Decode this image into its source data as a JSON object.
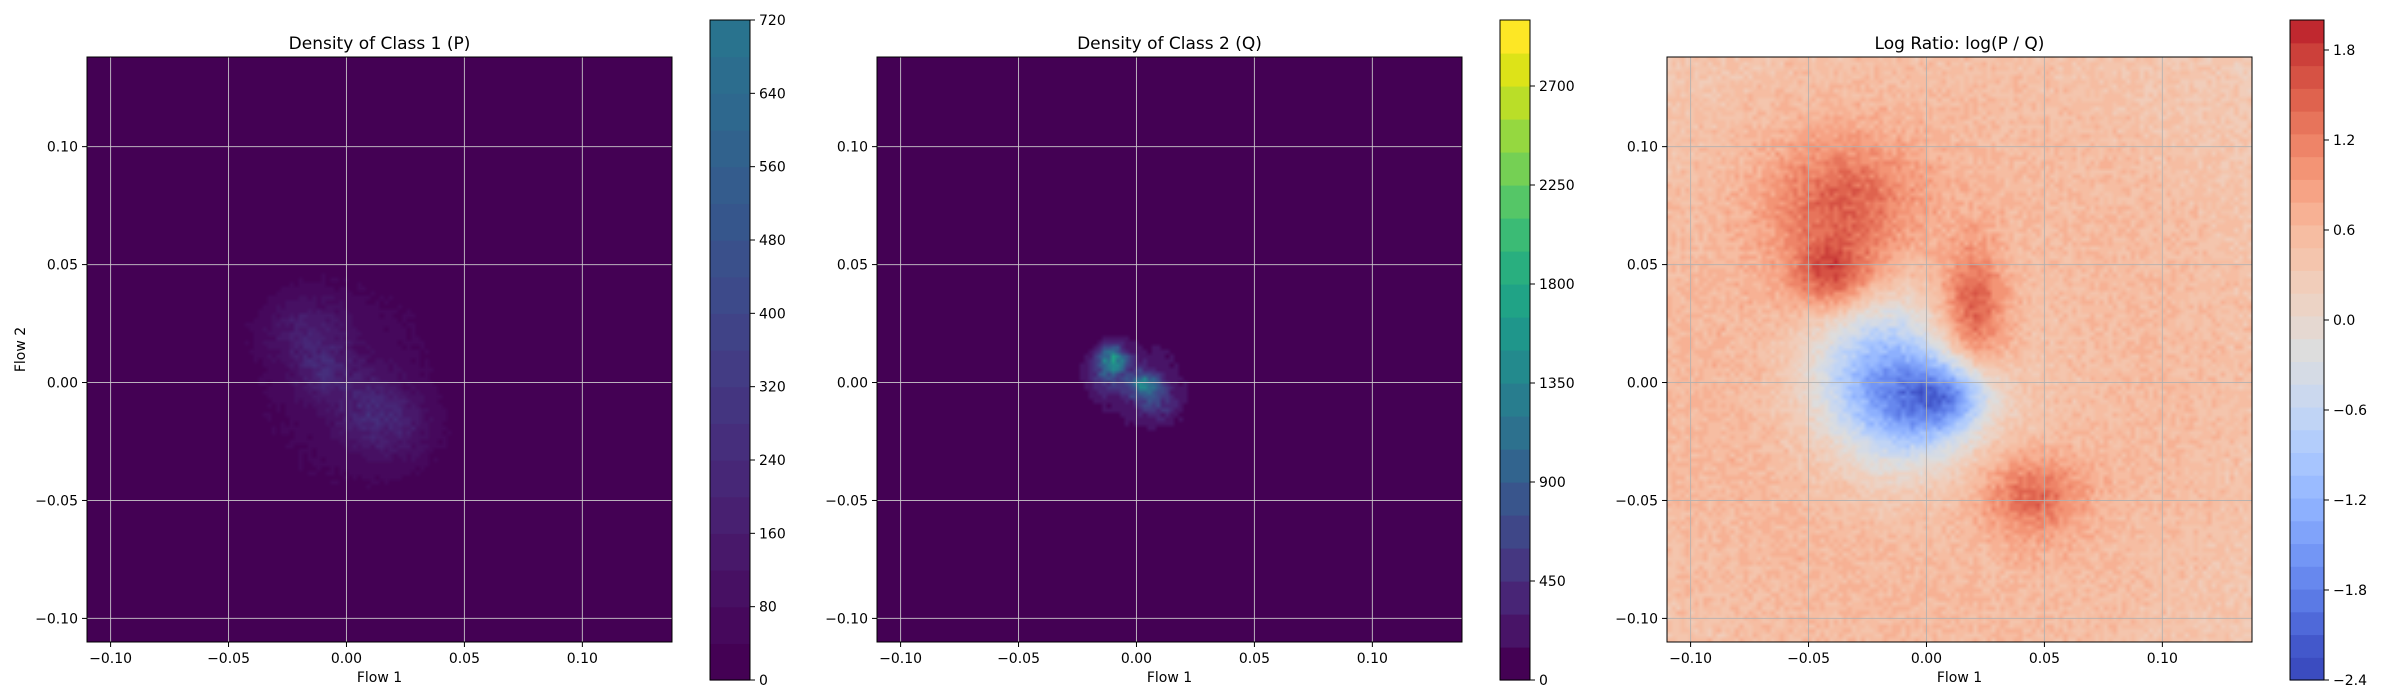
{
  "chart_data": [
    {
      "type": "heatmap",
      "title": "Density of Class 1 (P)",
      "xlabel": "Flow 1",
      "ylabel": "Flow 2",
      "xlim": [
        -0.11,
        0.138
      ],
      "ylim": [
        -0.11,
        0.138
      ],
      "xticks": [
        -0.1,
        -0.05,
        0.0,
        0.05,
        0.1
      ],
      "xtick_labels": [
        "−0.10",
        "−0.05",
        "0.00",
        "0.05",
        "0.10"
      ],
      "yticks": [
        -0.1,
        -0.05,
        0.0,
        0.05,
        0.1
      ],
      "ytick_labels": [
        "−0.10",
        "−0.05",
        "0.00",
        "0.05",
        "0.10"
      ],
      "grid": true,
      "colormap": "viridis",
      "background_color": "#440154",
      "colorbar": {
        "min": 0,
        "max": 720,
        "ticks": [
          0,
          80,
          160,
          240,
          320,
          400,
          480,
          560,
          640,
          720
        ],
        "tick_labels": [
          "0",
          "80",
          "160",
          "240",
          "320",
          "400",
          "480",
          "560",
          "640",
          "720"
        ],
        "levels": 18,
        "colors": [
          "#440154",
          "#46085c",
          "#471063",
          "#48186a",
          "#482071",
          "#472777",
          "#462e7c",
          "#443580",
          "#433c84",
          "#404387",
          "#3d4a8a",
          "#3a508b",
          "#36568c",
          "#345c8d",
          "#31628d",
          "#2e688e",
          "#2c6d8e",
          "#29738e"
        ]
      },
      "density_blobs": [
        {
          "x": 0.0,
          "y": 0.0,
          "sx": 0.03,
          "sy": 0.035,
          "value": 70
        },
        {
          "x": -0.018,
          "y": 0.022,
          "sx": 0.012,
          "sy": 0.01,
          "value": 110
        },
        {
          "x": 0.01,
          "y": -0.01,
          "sx": 0.01,
          "sy": 0.01,
          "value": 120
        },
        {
          "x": -0.01,
          "y": 0.005,
          "sx": 0.008,
          "sy": 0.008,
          "value": 130
        },
        {
          "x": 0.02,
          "y": -0.02,
          "sx": 0.012,
          "sy": 0.01,
          "value": 100
        }
      ]
    },
    {
      "type": "heatmap",
      "title": "Density of Class 2 (Q)",
      "xlabel": "Flow 1",
      "ylabel": "",
      "xlim": [
        -0.11,
        0.138
      ],
      "ylim": [
        -0.11,
        0.138
      ],
      "xticks": [
        -0.1,
        -0.05,
        0.0,
        0.05,
        0.1
      ],
      "xtick_labels": [
        "−0.10",
        "−0.05",
        "0.00",
        "0.05",
        "0.10"
      ],
      "yticks": [
        -0.1,
        -0.05,
        0.0,
        0.05,
        0.1
      ],
      "ytick_labels": [
        "−0.10",
        "−0.05",
        "0.00",
        "0.05",
        "0.10"
      ],
      "grid": true,
      "colormap": "viridis",
      "background_color": "#440154",
      "colorbar": {
        "min": 0,
        "max": 3000,
        "ticks": [
          0,
          450,
          900,
          1350,
          1800,
          2250,
          2700
        ],
        "tick_labels": [
          "0",
          "450",
          "900",
          "1350",
          "1800",
          "2250",
          "2700"
        ],
        "levels": 20,
        "colors": [
          "#440154",
          "#481467",
          "#482576",
          "#453781",
          "#3f4788",
          "#39558c",
          "#32648e",
          "#2d718e",
          "#287d8e",
          "#238a8d",
          "#1f968b",
          "#20a386",
          "#29af7f",
          "#3bbb75",
          "#55c667",
          "#75d054",
          "#95d840",
          "#bade28",
          "#dde318",
          "#fde725"
        ]
      },
      "density_blobs": [
        {
          "x": 0.0,
          "y": 0.0,
          "sx": 0.016,
          "sy": 0.015,
          "value": 260
        },
        {
          "x": -0.01,
          "y": 0.01,
          "sx": 0.004,
          "sy": 0.004,
          "value": 1100
        },
        {
          "x": 0.003,
          "y": -0.001,
          "sx": 0.004,
          "sy": 0.004,
          "value": 1000
        },
        {
          "x": -0.012,
          "y": 0.004,
          "sx": 0.006,
          "sy": 0.006,
          "value": 420
        },
        {
          "x": 0.01,
          "y": -0.008,
          "sx": 0.006,
          "sy": 0.006,
          "value": 380
        }
      ]
    },
    {
      "type": "heatmap",
      "title": "Log Ratio: log(P / Q)",
      "xlabel": "Flow 1",
      "ylabel": "",
      "xlim": [
        -0.11,
        0.138
      ],
      "ylim": [
        -0.11,
        0.138
      ],
      "xticks": [
        -0.1,
        -0.05,
        0.0,
        0.05,
        0.1
      ],
      "xtick_labels": [
        "−0.10",
        "−0.05",
        "0.00",
        "0.05",
        "0.10"
      ],
      "yticks": [
        -0.1,
        -0.05,
        0.0,
        0.05,
        0.1
      ],
      "ytick_labels": [
        "−0.10",
        "−0.05",
        "0.00",
        "0.05",
        "0.10"
      ],
      "grid": true,
      "colormap": "coolwarm",
      "background_value": 0.7,
      "colorbar": {
        "min": -2.4,
        "max": 2.0,
        "ticks": [
          -2.4,
          -1.8,
          -1.2,
          -0.6,
          0.0,
          0.6,
          1.2,
          1.8
        ],
        "tick_labels": [
          "−2.4",
          "−1.8",
          "−1.2",
          "−0.6",
          "0.0",
          "0.6",
          "1.2",
          "1.8"
        ],
        "levels": 22,
        "colors": [
          "#3b4cc0",
          "#4358cb",
          "#4f69d9",
          "#5b7ae5",
          "#6788ee",
          "#7396f5",
          "#80a3fa",
          "#8db0fe",
          "#9abbff",
          "#a7c5fe",
          "#b3cdfb",
          "#c0d4f5",
          "#cbd8ee",
          "#d5dbe5",
          "#dddddd",
          "#e5d8d1",
          "#ecd3c5",
          "#f1cdba",
          "#f4c5ad",
          "#f6bda2",
          "#f7b194",
          "#f6a385"
        ],
        "upper_colors": [
          "#f39475",
          "#ee8468",
          "#e7745b",
          "#df634e",
          "#d65244",
          "#cc403a",
          "#c0282f"
        ]
      },
      "ratio_blobs": [
        {
          "x": -0.02,
          "y": 0.002,
          "sx": 0.02,
          "sy": 0.022,
          "value": -1.6
        },
        {
          "x": -0.002,
          "y": -0.012,
          "sx": 0.016,
          "sy": 0.016,
          "value": -1.0
        },
        {
          "x": 0.012,
          "y": -0.005,
          "sx": 0.012,
          "sy": 0.01,
          "value": -1.2
        },
        {
          "x": -0.035,
          "y": 0.075,
          "sx": 0.022,
          "sy": 0.02,
          "value": 0.9
        },
        {
          "x": -0.04,
          "y": 0.045,
          "sx": 0.012,
          "sy": 0.01,
          "value": 1.0
        },
        {
          "x": 0.02,
          "y": 0.03,
          "sx": 0.01,
          "sy": 0.02,
          "value": 1.1
        },
        {
          "x": 0.045,
          "y": -0.048,
          "sx": 0.015,
          "sy": 0.012,
          "value": 0.9
        },
        {
          "x": 0.01,
          "y": 0.0,
          "sx": 0.06,
          "sy": 0.06,
          "value": -0.3
        }
      ]
    }
  ]
}
